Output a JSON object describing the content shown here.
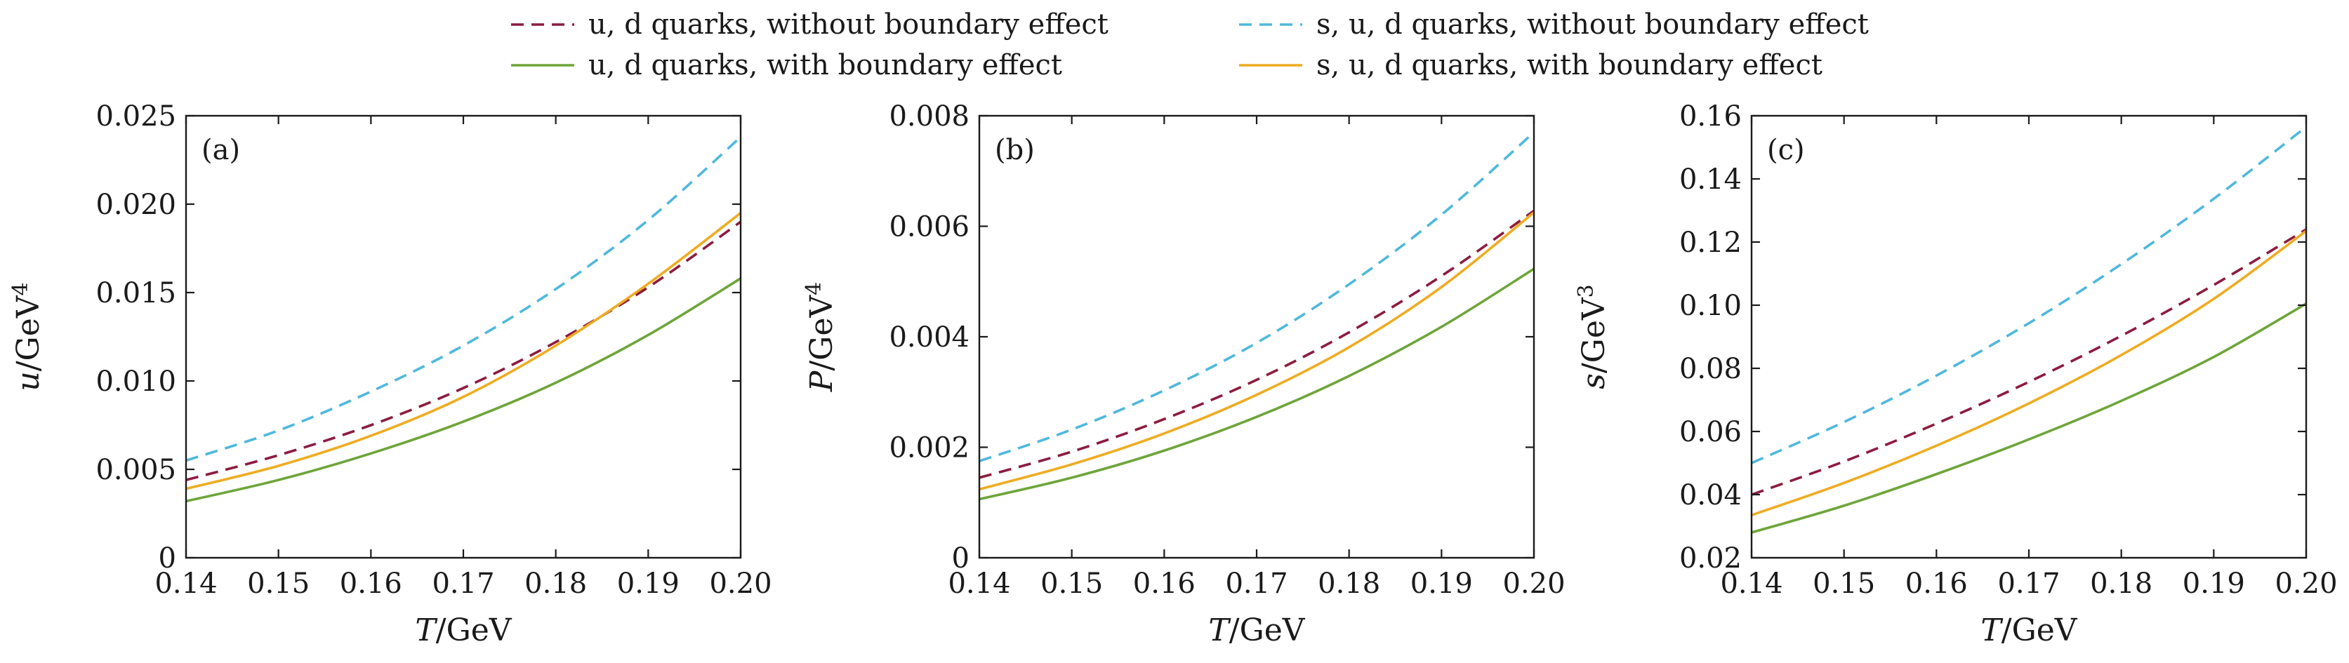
{
  "legend": {
    "items": [
      {
        "label": "u, d quarks, without boundary effect",
        "color": "#8c1c3f",
        "dashed": true
      },
      {
        "label": "s, u, d quarks, without boundary effect",
        "color": "#4fb8dc",
        "dashed": true
      },
      {
        "label": "u, d quarks, with boundary effect",
        "color": "#6ea53a",
        "dashed": false
      },
      {
        "label": "s, u, d quarks, with boundary effect",
        "color": "#eeac22",
        "dashed": false
      }
    ]
  },
  "chart_data": [
    {
      "type": "line",
      "panel_label": "(a)",
      "xlabel_var": "T",
      "xlabel_unit": "/GeV",
      "ylabel_var": "u",
      "ylabel_unit": "/GeV",
      "ylabel_exp": "4",
      "xlim": [
        0.14,
        0.2
      ],
      "ylim": [
        0,
        0.025
      ],
      "xticks": [
        "0.14",
        "0.15",
        "0.16",
        "0.17",
        "0.18",
        "0.19",
        "0.20"
      ],
      "yticks": [
        "0",
        "0.005",
        "0.010",
        "0.015",
        "0.020",
        "0.025"
      ],
      "x": [
        0.14,
        0.15,
        0.16,
        0.17,
        0.18,
        0.19,
        0.2
      ],
      "series": [
        {
          "name": "u, d quarks, without boundary effect",
          "color": "#8c1c3f",
          "dashed": true,
          "values": [
            0.0044,
            0.0058,
            0.0075,
            0.0096,
            0.0122,
            0.0153,
            0.019
          ]
        },
        {
          "name": "s, u, d quarks, without boundary effect",
          "color": "#4fb8dc",
          "dashed": true,
          "values": [
            0.0055,
            0.0072,
            0.0094,
            0.012,
            0.0152,
            0.0191,
            0.0238
          ]
        },
        {
          "name": "u, d quarks, with boundary effect",
          "color": "#6ea53a",
          "dashed": false,
          "values": [
            0.0032,
            0.0044,
            0.0059,
            0.0077,
            0.0099,
            0.0126,
            0.0158
          ]
        },
        {
          "name": "s, u, d quarks, with boundary effect",
          "color": "#eeac22",
          "dashed": false,
          "values": [
            0.0039,
            0.0052,
            0.0069,
            0.0091,
            0.012,
            0.0155,
            0.0195
          ]
        }
      ]
    },
    {
      "type": "line",
      "panel_label": "(b)",
      "xlabel_var": "T",
      "xlabel_unit": "/GeV",
      "ylabel_var": "P",
      "ylabel_unit": "/GeV",
      "ylabel_exp": "4",
      "xlim": [
        0.14,
        0.2
      ],
      "ylim": [
        0,
        0.008
      ],
      "xticks": [
        "0.14",
        "0.15",
        "0.16",
        "0.17",
        "0.18",
        "0.19",
        "0.20"
      ],
      "yticks": [
        "0",
        "0.002",
        "0.004",
        "0.006",
        "0.008"
      ],
      "x": [
        0.14,
        0.15,
        0.16,
        0.17,
        0.18,
        0.19,
        0.2
      ],
      "series": [
        {
          "name": "u, d quarks, without boundary effect",
          "color": "#8c1c3f",
          "dashed": true,
          "values": [
            0.00145,
            0.00192,
            0.00251,
            0.00322,
            0.00408,
            0.0051,
            0.00628
          ]
        },
        {
          "name": "s, u, d quarks, without boundary effect",
          "color": "#4fb8dc",
          "dashed": true,
          "values": [
            0.00175,
            0.00232,
            0.00303,
            0.00389,
            0.00495,
            0.00621,
            0.0077
          ]
        },
        {
          "name": "u, d quarks, with boundary effect",
          "color": "#6ea53a",
          "dashed": false,
          "values": [
            0.00106,
            0.00145,
            0.00194,
            0.00255,
            0.00329,
            0.00418,
            0.00523
          ]
        },
        {
          "name": "s, u, d quarks, with boundary effect",
          "color": "#eeac22",
          "dashed": false,
          "values": [
            0.00124,
            0.00169,
            0.00225,
            0.00295,
            0.00381,
            0.0049,
            0.00625
          ]
        }
      ]
    },
    {
      "type": "line",
      "panel_label": "(c)",
      "xlabel_var": "T",
      "xlabel_unit": "/GeV",
      "ylabel_var": "s",
      "ylabel_unit": "/GeV",
      "ylabel_exp": "3",
      "xlim": [
        0.14,
        0.2
      ],
      "ylim": [
        0.02,
        0.16
      ],
      "xticks": [
        "0.14",
        "0.15",
        "0.16",
        "0.17",
        "0.18",
        "0.19",
        "0.20"
      ],
      "yticks": [
        "0.02",
        "0.04",
        "0.06",
        "0.08",
        "0.10",
        "0.12",
        "0.14",
        "0.16"
      ],
      "x": [
        0.14,
        0.15,
        0.16,
        0.17,
        0.18,
        0.19,
        0.2
      ],
      "series": [
        {
          "name": "u, d quarks, without boundary effect",
          "color": "#8c1c3f",
          "dashed": true,
          "values": [
            0.04,
            0.0505,
            0.0625,
            0.0757,
            0.0903,
            0.1064,
            0.124
          ]
        },
        {
          "name": "s, u, d quarks, without boundary effect",
          "color": "#4fb8dc",
          "dashed": true,
          "values": [
            0.05,
            0.063,
            0.0777,
            0.0943,
            0.113,
            0.1337,
            0.1565
          ]
        },
        {
          "name": "u, d quarks, with boundary effect",
          "color": "#6ea53a",
          "dashed": false,
          "values": [
            0.028,
            0.0365,
            0.0465,
            0.0575,
            0.0697,
            0.0836,
            0.1005
          ]
        },
        {
          "name": "s, u, d quarks, with boundary effect",
          "color": "#eeac22",
          "dashed": false,
          "values": [
            0.0335,
            0.0437,
            0.0555,
            0.0689,
            0.0842,
            0.102,
            0.1235
          ]
        }
      ]
    }
  ]
}
